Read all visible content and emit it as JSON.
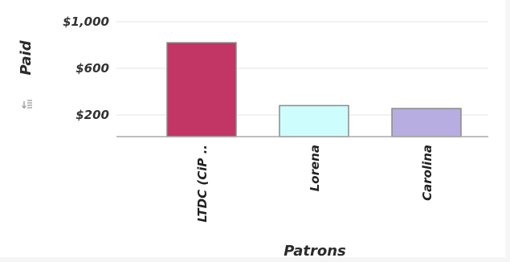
{
  "chart_data": {
    "type": "bar",
    "categories": [
      "LTDC (CiP ..",
      "Lorena",
      "Carolina"
    ],
    "values": [
      820,
      280,
      255
    ],
    "xlabel": "Patrons",
    "ylabel": "Paid",
    "ylim": [
      0,
      1100
    ],
    "yticks": [
      200,
      600,
      1000
    ],
    "ytick_labels": [
      "$200",
      "$600",
      "$1,000"
    ],
    "bar_colors": [
      "#c13664",
      "#cefdfd",
      "#b8ade0"
    ],
    "grid": true
  },
  "toolbar": {
    "sort_icon": "sort-icon"
  }
}
